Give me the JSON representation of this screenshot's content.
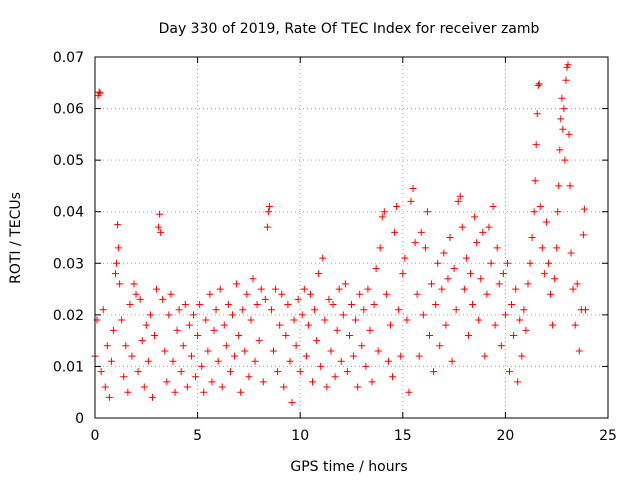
{
  "chart_data": {
    "type": "scatter",
    "title": "Day 330 of 2019, Rate Of TEC Index for receiver zamb",
    "xlabel": "GPS time / hours",
    "ylabel": "ROTI / TECUs",
    "xlim": [
      0,
      25
    ],
    "ylim": [
      0,
      0.07
    ],
    "xticks": [
      0,
      5,
      10,
      15,
      20,
      25
    ],
    "xtick_labels": [
      "0",
      "5",
      "10",
      "15",
      "20",
      "25"
    ],
    "yticks": [
      0,
      0.01,
      0.02,
      0.03,
      0.04,
      0.05,
      0.06,
      0.07
    ],
    "ytick_labels": [
      "0",
      "0.01",
      "0.02",
      "0.03",
      "0.04",
      "0.05",
      "0.06",
      "0.07"
    ],
    "grid": true,
    "marker": "plus",
    "color": "#ff0000",
    "series": [
      {
        "name": "ROTI",
        "points": [
          [
            0.0,
            0.012
          ],
          [
            0.1,
            0.019
          ],
          [
            0.15,
            0.0625
          ],
          [
            0.2,
            0.0632
          ],
          [
            0.25,
            0.063
          ],
          [
            0.3,
            0.009
          ],
          [
            0.4,
            0.021
          ],
          [
            0.5,
            0.006
          ],
          [
            0.6,
            0.014
          ],
          [
            0.7,
            0.004
          ],
          [
            0.8,
            0.011
          ],
          [
            0.9,
            0.017
          ],
          [
            1.0,
            0.028
          ],
          [
            1.05,
            0.03
          ],
          [
            1.1,
            0.0375
          ],
          [
            1.15,
            0.033
          ],
          [
            1.2,
            0.026
          ],
          [
            1.3,
            0.019
          ],
          [
            1.4,
            0.008
          ],
          [
            1.5,
            0.014
          ],
          [
            1.6,
            0.005
          ],
          [
            1.7,
            0.022
          ],
          [
            1.8,
            0.012
          ],
          [
            1.9,
            0.026
          ],
          [
            2.0,
            0.024
          ],
          [
            2.1,
            0.009
          ],
          [
            2.2,
            0.023
          ],
          [
            2.3,
            0.015
          ],
          [
            2.4,
            0.006
          ],
          [
            2.5,
            0.018
          ],
          [
            2.6,
            0.011
          ],
          [
            2.7,
            0.02
          ],
          [
            2.8,
            0.004
          ],
          [
            2.9,
            0.016
          ],
          [
            3.0,
            0.025
          ],
          [
            3.1,
            0.037
          ],
          [
            3.15,
            0.0395
          ],
          [
            3.2,
            0.036
          ],
          [
            3.3,
            0.023
          ],
          [
            3.4,
            0.013
          ],
          [
            3.5,
            0.007
          ],
          [
            3.6,
            0.02
          ],
          [
            3.7,
            0.024
          ],
          [
            3.8,
            0.011
          ],
          [
            3.9,
            0.005
          ],
          [
            4.0,
            0.017
          ],
          [
            4.1,
            0.021
          ],
          [
            4.2,
            0.009
          ],
          [
            4.3,
            0.014
          ],
          [
            4.4,
            0.022
          ],
          [
            4.5,
            0.006
          ],
          [
            4.6,
            0.018
          ],
          [
            4.7,
            0.012
          ],
          [
            4.8,
            0.02
          ],
          [
            4.9,
            0.008
          ],
          [
            5.0,
            0.016
          ],
          [
            5.1,
            0.022
          ],
          [
            5.2,
            0.01
          ],
          [
            5.3,
            0.005
          ],
          [
            5.4,
            0.019
          ],
          [
            5.5,
            0.013
          ],
          [
            5.6,
            0.024
          ],
          [
            5.7,
            0.007
          ],
          [
            5.8,
            0.017
          ],
          [
            5.9,
            0.021
          ],
          [
            6.0,
            0.011
          ],
          [
            6.1,
            0.025
          ],
          [
            6.2,
            0.006
          ],
          [
            6.3,
            0.018
          ],
          [
            6.4,
            0.014
          ],
          [
            6.5,
            0.022
          ],
          [
            6.6,
            0.009
          ],
          [
            6.7,
            0.02
          ],
          [
            6.8,
            0.012
          ],
          [
            6.9,
            0.026
          ],
          [
            7.0,
            0.016
          ],
          [
            7.1,
            0.005
          ],
          [
            7.2,
            0.021
          ],
          [
            7.3,
            0.013
          ],
          [
            7.4,
            0.024
          ],
          [
            7.5,
            0.008
          ],
          [
            7.6,
            0.019
          ],
          [
            7.7,
            0.027
          ],
          [
            7.8,
            0.011
          ],
          [
            7.9,
            0.022
          ],
          [
            8.0,
            0.015
          ],
          [
            8.1,
            0.025
          ],
          [
            8.2,
            0.007
          ],
          [
            8.3,
            0.023
          ],
          [
            8.4,
            0.037
          ],
          [
            8.45,
            0.04
          ],
          [
            8.5,
            0.041
          ],
          [
            8.6,
            0.021
          ],
          [
            8.7,
            0.013
          ],
          [
            8.8,
            0.025
          ],
          [
            8.9,
            0.009
          ],
          [
            9.0,
            0.018
          ],
          [
            9.1,
            0.024
          ],
          [
            9.2,
            0.006
          ],
          [
            9.3,
            0.016
          ],
          [
            9.4,
            0.022
          ],
          [
            9.5,
            0.011
          ],
          [
            9.6,
            0.003
          ],
          [
            9.7,
            0.019
          ],
          [
            9.8,
            0.014
          ],
          [
            9.9,
            0.023
          ],
          [
            10.0,
            0.009
          ],
          [
            10.1,
            0.02
          ],
          [
            10.2,
            0.025
          ],
          [
            10.3,
            0.012
          ],
          [
            10.4,
            0.018
          ],
          [
            10.5,
            0.024
          ],
          [
            10.6,
            0.007
          ],
          [
            10.7,
            0.021
          ],
          [
            10.8,
            0.015
          ],
          [
            10.9,
            0.028
          ],
          [
            11.0,
            0.01
          ],
          [
            11.1,
            0.031
          ],
          [
            11.2,
            0.019
          ],
          [
            11.3,
            0.006
          ],
          [
            11.4,
            0.023
          ],
          [
            11.5,
            0.013
          ],
          [
            11.6,
            0.022
          ],
          [
            11.7,
            0.008
          ],
          [
            11.8,
            0.017
          ],
          [
            11.9,
            0.025
          ],
          [
            12.0,
            0.011
          ],
          [
            12.1,
            0.02
          ],
          [
            12.2,
            0.026
          ],
          [
            12.3,
            0.009
          ],
          [
            12.4,
            0.016
          ],
          [
            12.5,
            0.022
          ],
          [
            12.6,
            0.012
          ],
          [
            12.7,
            0.019
          ],
          [
            12.8,
            0.006
          ],
          [
            12.9,
            0.024
          ],
          [
            13.0,
            0.014
          ],
          [
            13.1,
            0.021
          ],
          [
            13.2,
            0.01
          ],
          [
            13.3,
            0.025
          ],
          [
            13.4,
            0.017
          ],
          [
            13.5,
            0.007
          ],
          [
            13.6,
            0.022
          ],
          [
            13.7,
            0.029
          ],
          [
            13.8,
            0.013
          ],
          [
            13.9,
            0.033
          ],
          [
            14.0,
            0.039
          ],
          [
            14.1,
            0.04
          ],
          [
            14.2,
            0.024
          ],
          [
            14.3,
            0.011
          ],
          [
            14.4,
            0.018
          ],
          [
            14.5,
            0.008
          ],
          [
            14.6,
            0.036
          ],
          [
            14.7,
            0.041
          ],
          [
            14.8,
            0.021
          ],
          [
            14.9,
            0.012
          ],
          [
            15.0,
            0.028
          ],
          [
            15.1,
            0.031
          ],
          [
            15.2,
            0.019
          ],
          [
            15.3,
            0.005
          ],
          [
            15.4,
            0.042
          ],
          [
            15.5,
            0.0445
          ],
          [
            15.6,
            0.034
          ],
          [
            15.7,
            0.024
          ],
          [
            15.8,
            0.012
          ],
          [
            15.9,
            0.036
          ],
          [
            16.0,
            0.02
          ],
          [
            16.1,
            0.033
          ],
          [
            16.2,
            0.04
          ],
          [
            16.3,
            0.016
          ],
          [
            16.4,
            0.026
          ],
          [
            16.5,
            0.009
          ],
          [
            16.6,
            0.022
          ],
          [
            16.7,
            0.03
          ],
          [
            16.8,
            0.014
          ],
          [
            16.9,
            0.025
          ],
          [
            17.0,
            0.032
          ],
          [
            17.1,
            0.018
          ],
          [
            17.2,
            0.027
          ],
          [
            17.3,
            0.035
          ],
          [
            17.4,
            0.011
          ],
          [
            17.5,
            0.029
          ],
          [
            17.6,
            0.021
          ],
          [
            17.7,
            0.042
          ],
          [
            17.8,
            0.043
          ],
          [
            17.9,
            0.037
          ],
          [
            18.0,
            0.025
          ],
          [
            18.1,
            0.031
          ],
          [
            18.2,
            0.016
          ],
          [
            18.3,
            0.028
          ],
          [
            18.4,
            0.022
          ],
          [
            18.5,
            0.039
          ],
          [
            18.6,
            0.034
          ],
          [
            18.7,
            0.019
          ],
          [
            18.8,
            0.027
          ],
          [
            18.9,
            0.036
          ],
          [
            19.0,
            0.012
          ],
          [
            19.1,
            0.024
          ],
          [
            19.2,
            0.037
          ],
          [
            19.3,
            0.03
          ],
          [
            19.4,
            0.041
          ],
          [
            19.5,
            0.018
          ],
          [
            19.6,
            0.033
          ],
          [
            19.7,
            0.026
          ],
          [
            19.8,
            0.014
          ],
          [
            19.9,
            0.028
          ],
          [
            20.0,
            0.02
          ],
          [
            20.1,
            0.03
          ],
          [
            20.2,
            0.009
          ],
          [
            20.3,
            0.022
          ],
          [
            20.4,
            0.016
          ],
          [
            20.5,
            0.025
          ],
          [
            20.6,
            0.007
          ],
          [
            20.7,
            0.019
          ],
          [
            20.8,
            0.012
          ],
          [
            20.9,
            0.021
          ],
          [
            21.0,
            0.017
          ],
          [
            21.1,
            0.026
          ],
          [
            21.2,
            0.03
          ],
          [
            21.3,
            0.035
          ],
          [
            21.4,
            0.04
          ],
          [
            21.45,
            0.046
          ],
          [
            21.5,
            0.053
          ],
          [
            21.55,
            0.059
          ],
          [
            21.6,
            0.0645
          ],
          [
            21.65,
            0.0648
          ],
          [
            21.7,
            0.041
          ],
          [
            21.8,
            0.033
          ],
          [
            21.9,
            0.028
          ],
          [
            22.0,
            0.038
          ],
          [
            22.1,
            0.03
          ],
          [
            22.2,
            0.024
          ],
          [
            22.3,
            0.018
          ],
          [
            22.4,
            0.027
          ],
          [
            22.5,
            0.033
          ],
          [
            22.55,
            0.04
          ],
          [
            22.6,
            0.045
          ],
          [
            22.65,
            0.052
          ],
          [
            22.7,
            0.058
          ],
          [
            22.75,
            0.062
          ],
          [
            22.8,
            0.056
          ],
          [
            22.85,
            0.06
          ],
          [
            22.9,
            0.05
          ],
          [
            22.95,
            0.0655
          ],
          [
            23.0,
            0.068
          ],
          [
            23.05,
            0.0685
          ],
          [
            23.1,
            0.055
          ],
          [
            23.15,
            0.045
          ],
          [
            23.2,
            0.032
          ],
          [
            23.3,
            0.025
          ],
          [
            23.4,
            0.018
          ],
          [
            23.5,
            0.026
          ],
          [
            23.6,
            0.013
          ],
          [
            23.7,
            0.021
          ],
          [
            23.8,
            0.0355
          ],
          [
            23.85,
            0.0405
          ],
          [
            23.9,
            0.021
          ]
        ]
      }
    ]
  }
}
